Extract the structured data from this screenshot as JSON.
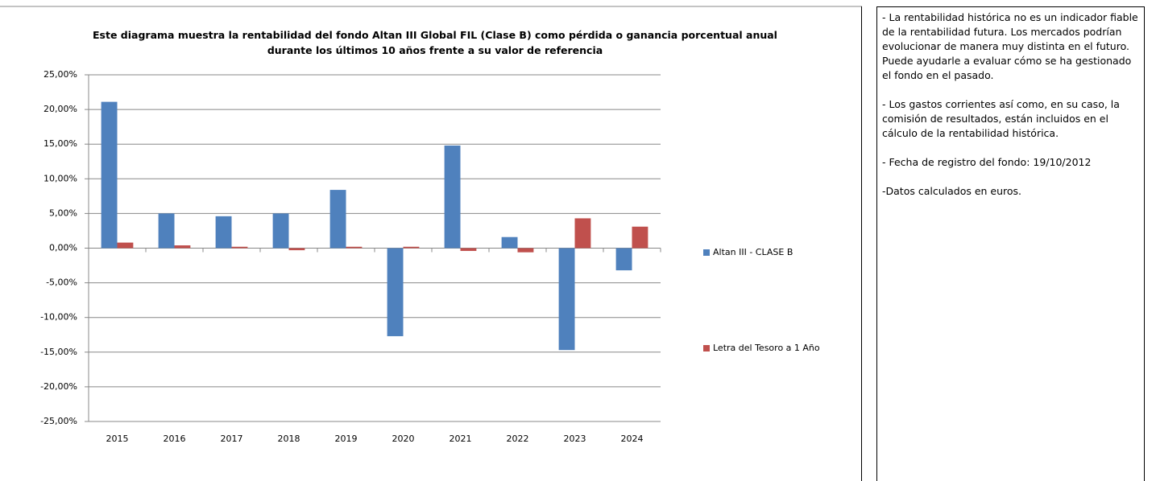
{
  "chart_data": {
    "type": "bar",
    "title": "Este diagrama muestra la rentabilidad del fondo Altan III  Global FIL (Clase B) como pérdida o ganancia porcentual anual durante los últimos 10 años frente a su valor de referencia",
    "categories": [
      "2015",
      "2016",
      "2017",
      "2018",
      "2019",
      "2020",
      "2021",
      "2022",
      "2023",
      "2024"
    ],
    "series": [
      {
        "name": "Altan III - CLASE B",
        "color": "#4f81bd",
        "values": [
          21.1,
          5.0,
          4.6,
          5.0,
          8.4,
          -12.7,
          14.8,
          1.6,
          -14.7,
          -3.2
        ]
      },
      {
        "name": "Letra del Tesoro a 1 Año",
        "color": "#c0504d",
        "values": [
          0.8,
          0.4,
          0.2,
          -0.3,
          0.2,
          0.2,
          -0.4,
          -0.6,
          4.3,
          3.1
        ]
      }
    ],
    "ylim": [
      -25,
      25
    ],
    "yticks": [
      {
        "value": 25,
        "label": "25,00%"
      },
      {
        "value": 20,
        "label": "20,00%"
      },
      {
        "value": 15,
        "label": "15,00%"
      },
      {
        "value": 10,
        "label": "10,00%"
      },
      {
        "value": 5,
        "label": "5,00%"
      },
      {
        "value": 0,
        "label": "0,00%"
      },
      {
        "value": -5,
        "label": "-5,00%"
      },
      {
        "value": -10,
        "label": "-10,00%"
      },
      {
        "value": -15,
        "label": "-15,00%"
      },
      {
        "value": -20,
        "label": "-20,00%"
      },
      {
        "value": -25,
        "label": "-25,00%"
      }
    ],
    "grid": true
  },
  "notes": [
    "-  La rentabilidad histórica no es un indicador fiable de la rentabilidad futura. Los mercados podrían evolucionar de manera muy distinta en el futuro. Puede ayudarle a evaluar cómo se ha gestionado el fondo en el pasado.",
    "- Los gastos corrientes así como, en su caso, la comisión de resultados, están incluidos en el cálculo de la rentabilidad histórica.",
    "- Fecha de registro del fondo: 19/10/2012",
    "-Datos calculados en euros."
  ]
}
